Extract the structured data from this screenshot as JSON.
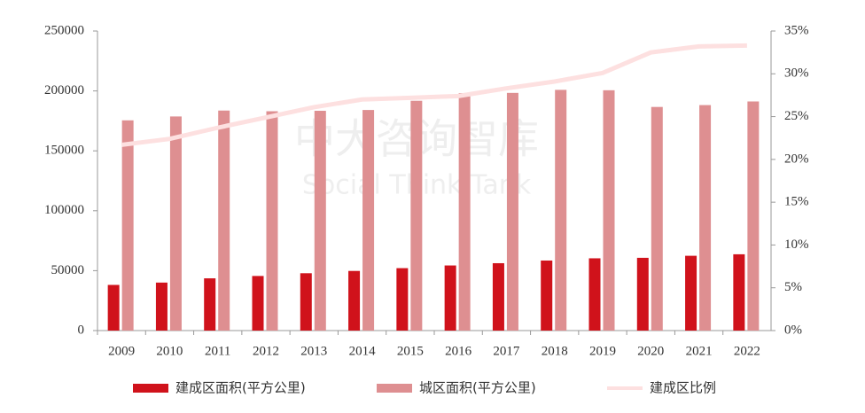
{
  "chart_data": {
    "type": "bar_line",
    "categories": [
      "2009",
      "2010",
      "2011",
      "2012",
      "2013",
      "2014",
      "2015",
      "2016",
      "2017",
      "2018",
      "2019",
      "2020",
      "2021",
      "2022"
    ],
    "series": [
      {
        "name": "建成区面积(平方公里)",
        "type": "bar",
        "color": "#d0121b",
        "values": [
          38107,
          40058,
          43603,
          45566,
          47855,
          49773,
          52102,
          54331,
          56225,
          58456,
          60312,
          60721,
          62421,
          63676
        ]
      },
      {
        "name": "城区面积(平方公里)",
        "type": "bar",
        "color": "#de8f91",
        "values": [
          175464,
          178692,
          183618,
          183039,
          183416,
          184099,
          191776,
          198179,
          198357,
          200896,
          200569,
          186629,
          188183,
          191212
        ]
      },
      {
        "name": "建成区比例",
        "type": "line",
        "axis": "y2",
        "color": "#fde0e0",
        "values": [
          21.7,
          22.4,
          23.7,
          24.9,
          26.1,
          27.0,
          27.2,
          27.4,
          28.3,
          29.1,
          30.1,
          32.5,
          33.2,
          33.3
        ]
      }
    ],
    "ylim": [
      0,
      250000
    ],
    "yticks": [
      0,
      50000,
      100000,
      150000,
      200000,
      250000
    ],
    "y2lim": [
      0,
      35
    ],
    "y2ticks": [
      {
        "value": 0,
        "label": "0%"
      },
      {
        "value": 5,
        "label": "5%"
      },
      {
        "value": 10,
        "label": "10%"
      },
      {
        "value": 15,
        "label": "15%"
      },
      {
        "value": 20,
        "label": "20%"
      },
      {
        "value": 25,
        "label": "25%"
      },
      {
        "value": 30,
        "label": "30%"
      },
      {
        "value": 35,
        "label": "35%"
      }
    ],
    "legend": "bottom",
    "watermark": {
      "title": "中大咨询智库",
      "subtitle": "Social Think Tank"
    }
  }
}
